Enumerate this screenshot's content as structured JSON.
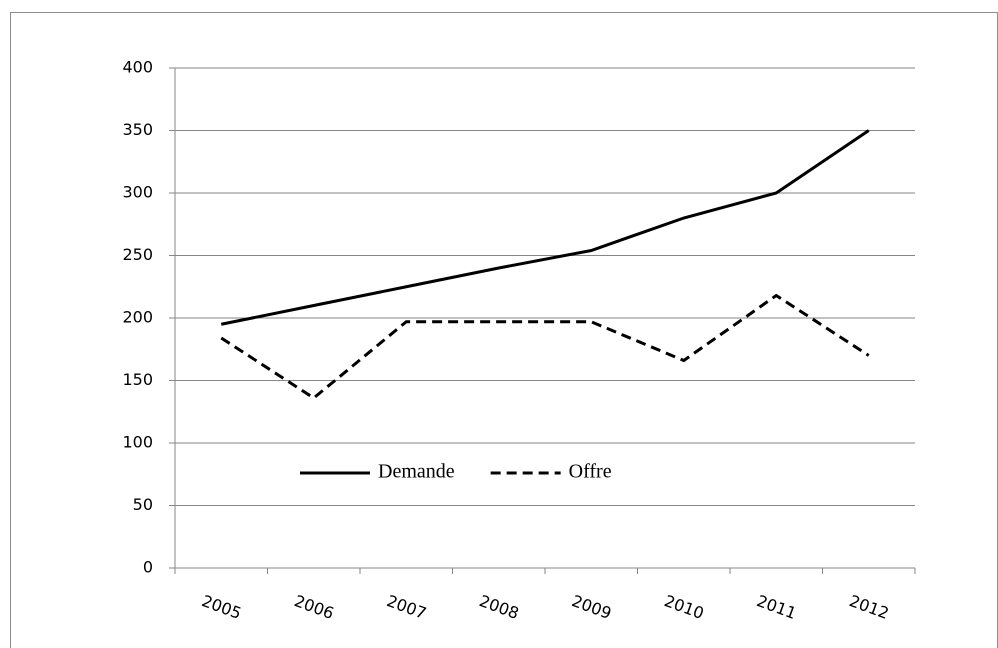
{
  "chart_data": {
    "type": "line",
    "categories": [
      "2005",
      "2006",
      "2007",
      "2008",
      "2009",
      "2010",
      "2011",
      "2012"
    ],
    "series": [
      {
        "name": "Demande",
        "color": "#000000",
        "dash": "solid",
        "values": [
          195,
          210,
          225,
          240,
          254,
          280,
          300,
          350
        ]
      },
      {
        "name": "Offre",
        "color": "#000000",
        "dash": "dashed",
        "values": [
          184,
          136,
          197,
          197,
          197,
          166,
          218,
          170
        ]
      }
    ],
    "ylim": [
      0,
      400
    ],
    "yticks": [
      0,
      50,
      100,
      150,
      200,
      250,
      300,
      350,
      400
    ],
    "grid": true
  }
}
